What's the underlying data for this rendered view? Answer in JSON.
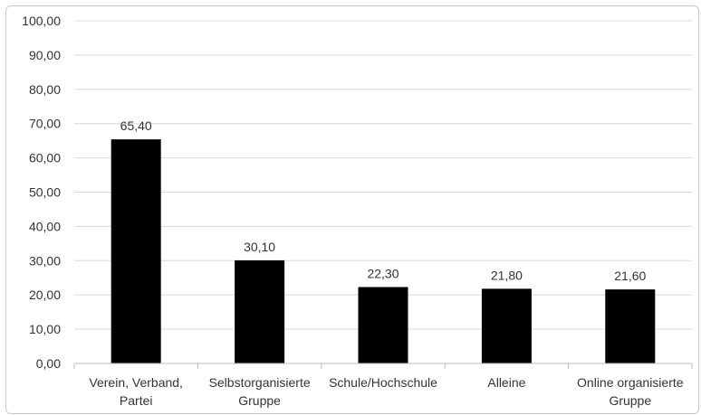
{
  "chart_data": {
    "type": "bar",
    "categories": [
      [
        "Verein, Verband,",
        "Partei"
      ],
      [
        "Selbstorganisierte",
        "Gruppe"
      ],
      [
        "Schule/Hochschule"
      ],
      [
        "Alleine"
      ],
      [
        "Online organisierte",
        "Gruppe"
      ]
    ],
    "values": [
      65.4,
      30.1,
      22.3,
      21.8,
      21.6
    ],
    "value_labels": [
      "65,40",
      "30,10",
      "22,30",
      "21,80",
      "21,60"
    ],
    "y_ticks": [
      "0,00",
      "10,00",
      "20,00",
      "30,00",
      "40,00",
      "50,00",
      "60,00",
      "70,00",
      "80,00",
      "90,00",
      "100,00"
    ],
    "ylim": [
      0,
      100
    ],
    "title": "",
    "xlabel": "",
    "ylabel": "",
    "grid": true,
    "bar_color": "#000000",
    "grid_color": "#d9d9d9"
  }
}
